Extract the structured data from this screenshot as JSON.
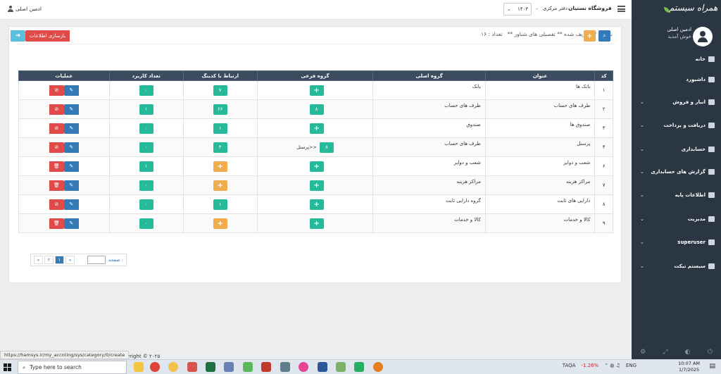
{
  "topbar": {
    "user_name": "ادمین اصلی",
    "year": "۱۴۰۳",
    "branch": "دفتر مرکزی",
    "shop": "فروشگاه تستیان"
  },
  "sidebar": {
    "logo_text": "همراه سیستم",
    "profile_name": "ادمین اصلی",
    "welcome": "خوش آمدید",
    "items": [
      {
        "label": "خانه",
        "icon": "home-icon",
        "expandable": false
      },
      {
        "label": "داشبورد",
        "icon": "dashboard-icon",
        "expandable": false
      },
      {
        "label": "انبار و فروش",
        "icon": "cart-icon",
        "expandable": true
      },
      {
        "label": "دریافت و پرداخت",
        "icon": "credit-card-icon",
        "expandable": true
      },
      {
        "label": "حسابداری",
        "icon": "ledger-icon",
        "expandable": true
      },
      {
        "label": "گزارش های حسابداری",
        "icon": "bar-chart-icon",
        "expandable": true
      },
      {
        "label": "اطلاعات پایه",
        "icon": "info-icon",
        "expandable": true
      },
      {
        "label": "مدیریت",
        "icon": "server-icon",
        "expandable": true
      },
      {
        "label": "superuser",
        "icon": "users-icon",
        "expandable": true
      },
      {
        "label": "سیستم تیکت",
        "icon": "ticket-icon",
        "expandable": true
      }
    ]
  },
  "panel": {
    "title": "نمایش ** تعریف شده ** تفصیلی های شناور **",
    "count_label": "تعداد : ۱۶",
    "refresh_label": "بازسازی اطلاعات"
  },
  "table": {
    "headers": [
      "کد",
      "عنوان",
      "گروه اصلی",
      "گروه فرعی",
      "ارتباط با کدینگ",
      "تعداد کاربرد",
      "عملیات"
    ],
    "rows": [
      {
        "code": "۱",
        "title": "بانک ها",
        "group": "بانک",
        "sub": "+",
        "sub_text": "",
        "coding": "۷",
        "coding_color": "green",
        "usage": "۰",
        "delete_type": "ban"
      },
      {
        "code": "۲",
        "title": "طرف های حساب",
        "group": "طرف های حساب",
        "sub": "۸",
        "sub_text": "",
        "coding": "۶۶",
        "coding_color": "green",
        "usage": "۱",
        "delete_type": "ban"
      },
      {
        "code": "۳",
        "title": "صندوق ها",
        "group": "صندوق",
        "sub": "+",
        "sub_text": "",
        "coding": "۱",
        "coding_color": "green",
        "usage": "۰",
        "delete_type": "ban"
      },
      {
        "code": "۴",
        "title": "پرسنل",
        "group": "طرف های حساب",
        "sub": "۸",
        "sub_text": "<<پرسنل",
        "coding": "۴",
        "coding_color": "green",
        "usage": "۰",
        "delete_type": "ban"
      },
      {
        "code": "۶",
        "title": "شعب و دوایر",
        "group": "شعب و دوایر",
        "sub": "+",
        "sub_text": "",
        "coding": "+",
        "coding_color": "orange",
        "usage": "۱",
        "delete_type": "trash"
      },
      {
        "code": "۷",
        "title": "مراکز هزینه",
        "group": "مراکز هزینه",
        "sub": "+",
        "sub_text": "",
        "coding": "+",
        "coding_color": "orange",
        "usage": "۰",
        "delete_type": "trash"
      },
      {
        "code": "۸",
        "title": "دارایی های ثابت",
        "group": "گروه دارایی ثابت",
        "sub": "+",
        "sub_text": "",
        "coding": "۱",
        "coding_color": "green",
        "usage": "۰",
        "delete_type": "ban"
      },
      {
        "code": "۹",
        "title": "کالا و خدمات",
        "group": "کالا و خدمات",
        "sub": "+",
        "sub_text": "",
        "coding": "+",
        "coding_color": "orange",
        "usage": "۰",
        "delete_type": "trash"
      }
    ]
  },
  "pager": {
    "pages": [
      "«",
      "۲",
      "۱",
      "»"
    ],
    "active": "۱",
    "page_label": "صفحه :"
  },
  "footer": {
    "copyright": "yright © ۲۰۲۵"
  },
  "status_url": "https://hamsys.ir/my_accnting/sys/category/0/create",
  "taskbar": {
    "search_placeholder": "Type here to search",
    "ticker": "TAQA",
    "ticker_change": "-1.26%",
    "lang": "ENG",
    "time": "10:07 AM",
    "date": "1/7/2025"
  }
}
